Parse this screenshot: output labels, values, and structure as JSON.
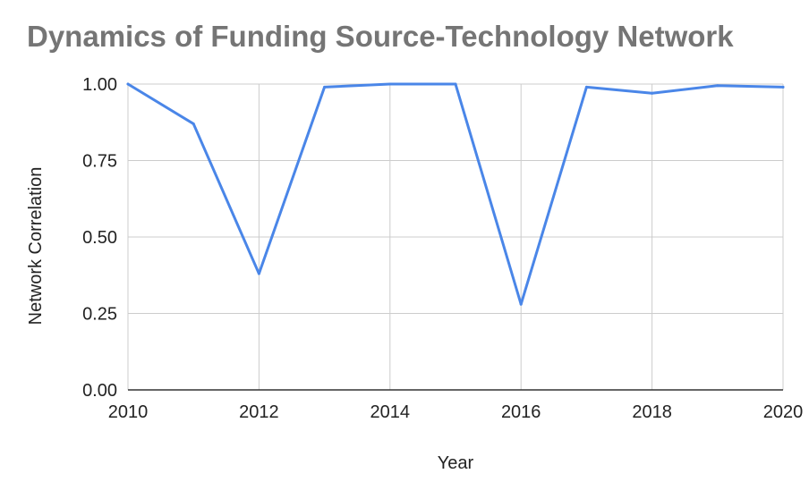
{
  "chart_data": {
    "type": "line",
    "title": "Dynamics of Funding Source-Technology Network",
    "xlabel": "Year",
    "ylabel": "Network Correlation",
    "xlim": [
      2010,
      2020
    ],
    "ylim": [
      0,
      1
    ],
    "x_ticks": [
      "2010",
      "2012",
      "2014",
      "2016",
      "2018",
      "2020"
    ],
    "y_ticks": [
      "0.00",
      "0.25",
      "0.50",
      "0.75",
      "1.00"
    ],
    "grid": true,
    "legend": "none",
    "line_color": "#4a86e8",
    "series": [
      {
        "x": [
          2010,
          2011,
          2012,
          2013,
          2014,
          2015,
          2016,
          2017,
          2018,
          2019,
          2020
        ],
        "values": [
          1.0,
          0.87,
          0.38,
          0.99,
          1.0,
          1.0,
          0.28,
          0.99,
          0.97,
          0.995,
          0.99
        ]
      }
    ]
  }
}
